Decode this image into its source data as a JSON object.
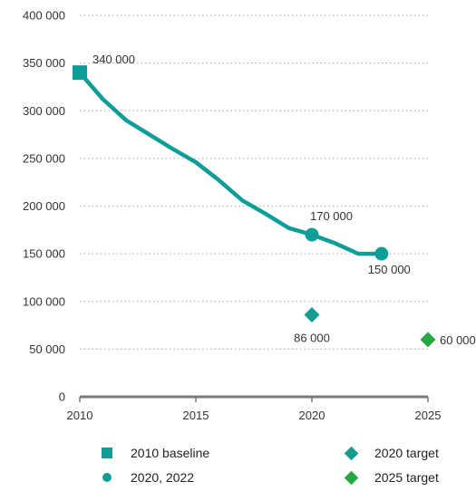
{
  "chart_data": {
    "type": "line",
    "xlim": [
      2010,
      2025
    ],
    "ylim": [
      0,
      400000
    ],
    "x_ticks": [
      2010,
      2015,
      2020,
      2025
    ],
    "x_tick_labels": [
      "2010",
      "2015",
      "2020",
      "2025"
    ],
    "y_ticks": [
      0,
      50000,
      100000,
      150000,
      200000,
      250000,
      300000,
      350000,
      400000
    ],
    "y_tick_labels": [
      "0",
      "50 000",
      "100 000",
      "150 000",
      "200 000",
      "250 000",
      "300 000",
      "350 000",
      "400 000"
    ],
    "grid": "horizontal dotted",
    "series": [
      {
        "name": "2020, 2022",
        "color": "#0e9e97",
        "x": [
          2010,
          2011,
          2012,
          2013,
          2014,
          2015,
          2016,
          2017,
          2018,
          2019,
          2020,
          2021,
          2022,
          2023
        ],
        "y": [
          340000,
          312000,
          290000,
          275000,
          260000,
          246000,
          227000,
          206000,
          192000,
          177000,
          170000,
          161000,
          150000,
          150000
        ]
      }
    ],
    "markers": [
      {
        "name": "2010 baseline",
        "shape": "square",
        "color": "#0e9e97",
        "x": 2010,
        "y": 340000,
        "label": "340 000"
      },
      {
        "name": "2020, 2022",
        "shape": "circle",
        "color": "#0e9e97",
        "x": 2020,
        "y": 170000,
        "label": "170 000"
      },
      {
        "name": "2020, 2022",
        "shape": "circle",
        "color": "#0e9e97",
        "x": 2023,
        "y": 150000,
        "label": "150 000"
      },
      {
        "name": "2020 target",
        "shape": "diamond",
        "color": "#179b93",
        "x": 2020,
        "y": 86000,
        "label": "86 000"
      },
      {
        "name": "2025 target",
        "shape": "diamond",
        "color": "#25a844",
        "x": 2025,
        "y": 60000,
        "label": "60 000"
      }
    ]
  },
  "legend": {
    "items": [
      {
        "label": "2010 baseline",
        "shape": "square",
        "color": "#0e9e97"
      },
      {
        "label": "2020, 2022",
        "shape": "circle",
        "color": "#0e9e97"
      },
      {
        "label": "2020 target",
        "shape": "diamond",
        "color": "#179b93"
      },
      {
        "label": "2025 target",
        "shape": "diamond",
        "color": "#25a844"
      }
    ]
  }
}
